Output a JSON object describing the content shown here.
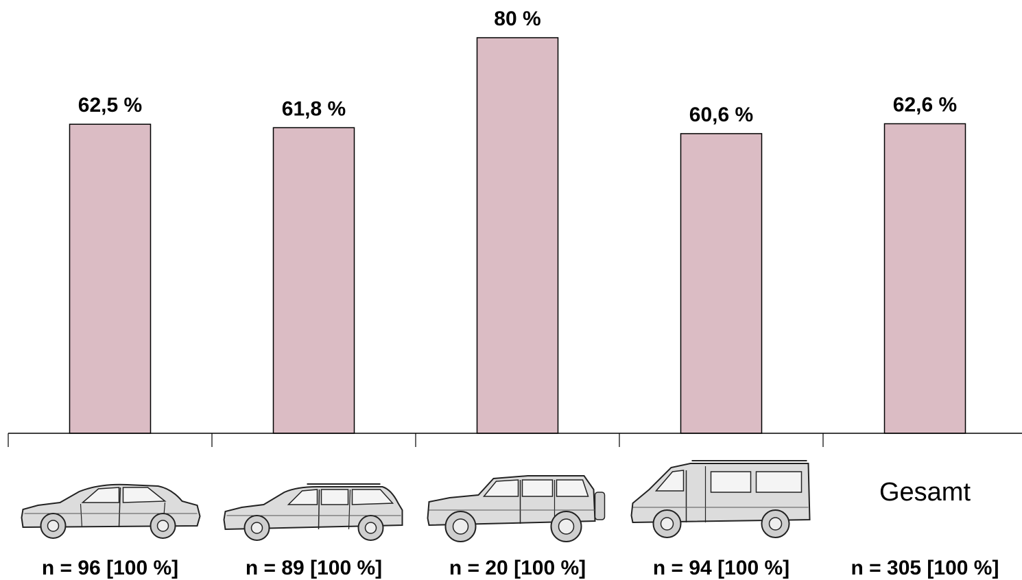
{
  "chart_data": {
    "type": "bar",
    "categories": [
      {
        "id": "limousine",
        "icon": "sedan-car-icon",
        "label": ""
      },
      {
        "id": "kombi",
        "icon": "station-wagon-car-icon",
        "label": ""
      },
      {
        "id": "gelaendewagen",
        "icon": "suv-car-icon",
        "label": ""
      },
      {
        "id": "transporter",
        "icon": "van-icon",
        "label": ""
      },
      {
        "id": "gesamt",
        "icon": "",
        "label": "Gesamt"
      }
    ],
    "values": [
      62.5,
      61.8,
      80,
      60.6,
      62.6
    ],
    "value_labels": [
      "62,5 %",
      "61,8 %",
      "80 %",
      "60,6 %",
      "62,6 %"
    ],
    "n_labels": [
      "n = 96 [100 %]",
      "n = 89 [100 %]",
      "n = 20 [100 %]",
      "n = 94 [100 %]",
      "n = 305 [100 %]"
    ],
    "ylim": [
      0,
      80
    ],
    "grid": false,
    "legend": "none",
    "bar_color": "#dbbcc4",
    "bar_stroke": "#000000"
  }
}
